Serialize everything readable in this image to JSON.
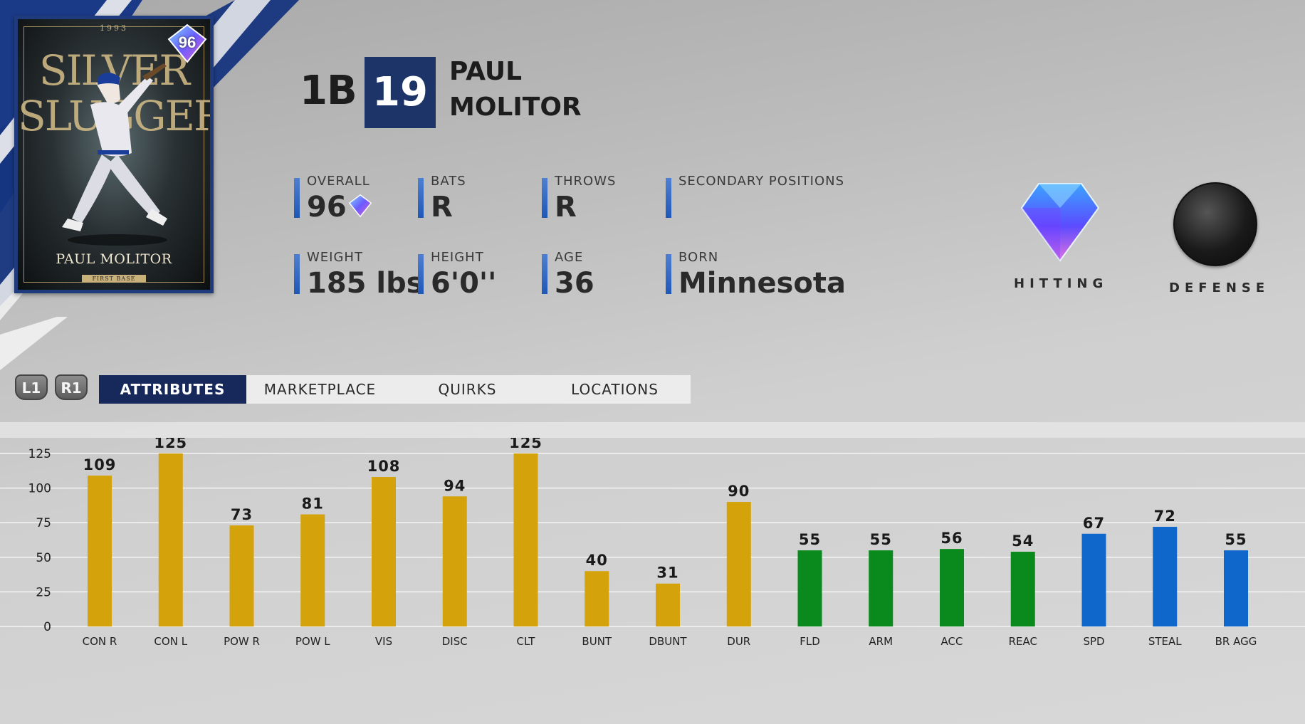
{
  "card": {
    "year": "1993",
    "title_line1": "SILVER",
    "title_line2": "SLUGGER",
    "name": "PAUL MOLITOR",
    "position": "FIRST BASE",
    "rating": "96"
  },
  "player": {
    "position": "1B",
    "number": "19",
    "first_name": "PAUL",
    "last_name": "MOLITOR"
  },
  "info": {
    "overall": {
      "label": "OVERALL",
      "value": "96"
    },
    "bats": {
      "label": "BATS",
      "value": "R"
    },
    "throws": {
      "label": "THROWS",
      "value": "R"
    },
    "secondary": {
      "label": "SECONDARY POSITIONS",
      "value": ""
    },
    "weight": {
      "label": "WEIGHT",
      "value": "185 lbs"
    },
    "height": {
      "label": "HEIGHT",
      "value": "6'0''"
    },
    "age": {
      "label": "AGE",
      "value": "36"
    },
    "born": {
      "label": "BORN",
      "value": "Minnesota"
    }
  },
  "badges": {
    "hitting": "HITTING",
    "defense": "DEFENSE"
  },
  "controls": {
    "l1": "L1",
    "r1": "R1"
  },
  "tabs": [
    {
      "label": "ATTRIBUTES",
      "active": true
    },
    {
      "label": "MARKETPLACE",
      "active": false
    },
    {
      "label": "QUIRKS",
      "active": false
    },
    {
      "label": "LOCATIONS",
      "active": false
    }
  ],
  "colors": {
    "hitting_bar": "#d4a20a",
    "fielding_bar": "#0a8a1c",
    "running_bar": "#0f67cc",
    "tab_active": "#17295a",
    "number_box": "#1d3468"
  },
  "chart_data": {
    "type": "bar",
    "ylim": [
      0,
      125
    ],
    "yticks": [
      0,
      25,
      50,
      75,
      100,
      125
    ],
    "grid": true,
    "categories": [
      "CON R",
      "CON L",
      "POW R",
      "POW L",
      "VIS",
      "DISC",
      "CLT",
      "BUNT",
      "DBUNT",
      "DUR",
      "FLD",
      "ARM",
      "ACC",
      "REAC",
      "SPD",
      "STEAL",
      "BR AGG"
    ],
    "values": [
      109,
      125,
      73,
      81,
      108,
      94,
      125,
      40,
      31,
      90,
      55,
      55,
      56,
      54,
      67,
      72,
      55
    ],
    "groups": [
      "hitting",
      "hitting",
      "hitting",
      "hitting",
      "hitting",
      "hitting",
      "hitting",
      "hitting",
      "hitting",
      "hitting",
      "fielding",
      "fielding",
      "fielding",
      "fielding",
      "running",
      "running",
      "running"
    ]
  }
}
